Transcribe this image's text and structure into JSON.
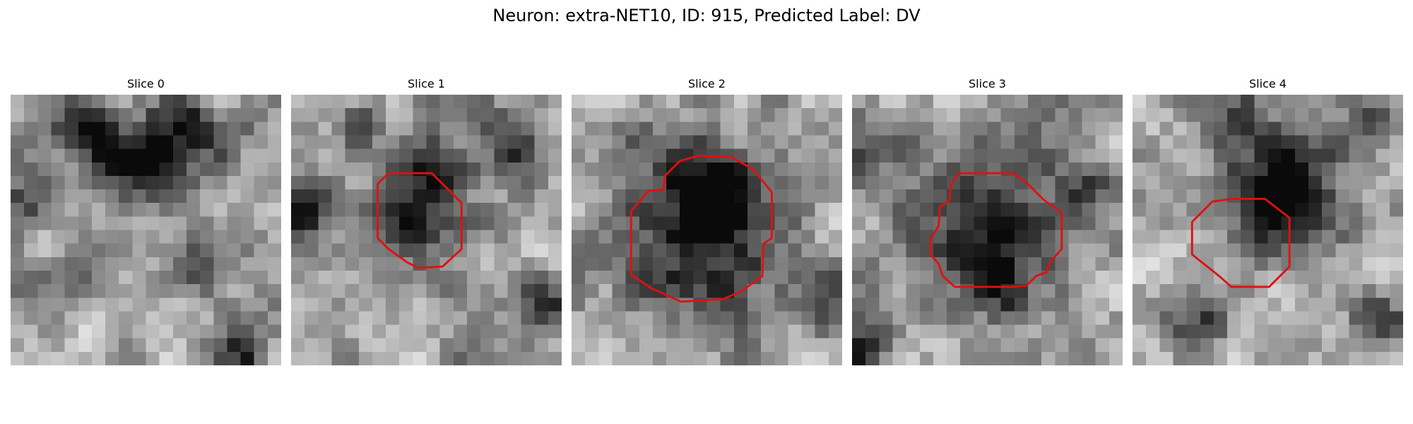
{
  "figure": {
    "title": "Neuron: extra-NET10, ID: 915, Predicted Label: DV"
  },
  "colors": {
    "contour": "#e01010"
  },
  "slices": [
    {
      "title": "Slice 0",
      "blobs": [
        {
          "cx": 5.5,
          "cy": 2.5,
          "r": 2.0,
          "d": 0.55
        },
        {
          "cx": 12.5,
          "cy": 1.5,
          "r": 1.6,
          "d": 0.5
        },
        {
          "cx": 10.5,
          "cy": 5.5,
          "r": 2.2,
          "d": 0.45
        },
        {
          "cx": 8.5,
          "cy": 4.5,
          "r": 1.3,
          "d": 0.35
        },
        {
          "cx": 1.0,
          "cy": 8.0,
          "r": 1.6,
          "d": 0.35
        },
        {
          "cx": 14.5,
          "cy": 12.0,
          "r": 1.8,
          "d": 0.3
        },
        {
          "cx": 3.0,
          "cy": 14.5,
          "r": 1.5,
          "d": 0.25
        },
        {
          "cx": 17.5,
          "cy": 19.0,
          "r": 1.5,
          "d": 0.5
        },
        {
          "cx": 15.5,
          "cy": 3.0,
          "r": 1.4,
          "d": 0.35
        }
      ],
      "contour": null
    },
    {
      "title": "Slice 1",
      "blobs": [
        {
          "cx": 9.0,
          "cy": 8.5,
          "r": 2.8,
          "d": 0.45
        },
        {
          "cx": 10.5,
          "cy": 4.8,
          "r": 1.5,
          "d": 0.5
        },
        {
          "cx": 16.5,
          "cy": 3.5,
          "r": 2.0,
          "d": 0.45
        },
        {
          "cx": 1.0,
          "cy": 9.0,
          "r": 1.5,
          "d": 0.5
        },
        {
          "cx": 18.5,
          "cy": 16.0,
          "r": 1.5,
          "d": 0.55
        },
        {
          "cx": 5.0,
          "cy": 2.0,
          "r": 1.3,
          "d": 0.25
        }
      ],
      "contour": [
        [
          7.2,
          5.8
        ],
        [
          10.4,
          5.8
        ],
        [
          12.6,
          8.0
        ],
        [
          12.6,
          11.4
        ],
        [
          11.2,
          12.7
        ],
        [
          9.4,
          12.8
        ],
        [
          8.6,
          12.4
        ],
        [
          7.2,
          11.4
        ],
        [
          6.4,
          10.6
        ],
        [
          6.4,
          6.6
        ]
      ]
    },
    {
      "title": "Slice 2",
      "blobs": [
        {
          "cx": 9.8,
          "cy": 10.4,
          "r": 4.3,
          "d": 0.62
        },
        {
          "cx": 10.8,
          "cy": 6.5,
          "r": 2.0,
          "d": 0.3
        },
        {
          "cx": 5.0,
          "cy": 3.3,
          "r": 1.2,
          "d": 0.35
        },
        {
          "cx": 19.5,
          "cy": 16.0,
          "r": 1.5,
          "d": 0.45
        }
      ],
      "contour": [
        [
          8.0,
          4.9
        ],
        [
          9.4,
          4.5
        ],
        [
          11.8,
          4.6
        ],
        [
          13.4,
          5.5
        ],
        [
          14.8,
          7.2
        ],
        [
          14.8,
          10.6
        ],
        [
          14.2,
          11.0
        ],
        [
          14.1,
          13.4
        ],
        [
          12.6,
          14.5
        ],
        [
          11.2,
          15.1
        ],
        [
          8.1,
          15.3
        ],
        [
          7.0,
          14.8
        ],
        [
          5.9,
          14.3
        ],
        [
          4.4,
          13.3
        ],
        [
          4.4,
          8.6
        ],
        [
          5.7,
          7.1
        ],
        [
          6.8,
          7.0
        ],
        [
          6.9,
          6.0
        ]
      ]
    },
    {
      "title": "Slice 3",
      "blobs": [
        {
          "cx": 10.3,
          "cy": 9.8,
          "r": 4.0,
          "d": 0.58
        },
        {
          "cx": 11.0,
          "cy": 14.5,
          "r": 1.5,
          "d": 0.25
        },
        {
          "cx": 1.0,
          "cy": 3.5,
          "r": 1.3,
          "d": 0.45
        },
        {
          "cx": 17.5,
          "cy": 7.5,
          "r": 1.3,
          "d": 0.3
        },
        {
          "cx": 0.5,
          "cy": 19.0,
          "r": 1.5,
          "d": 0.5
        }
      ],
      "contour": [
        [
          7.9,
          5.8
        ],
        [
          11.9,
          5.8
        ],
        [
          12.9,
          6.5
        ],
        [
          14.2,
          7.8
        ],
        [
          15.5,
          8.7
        ],
        [
          15.5,
          11.4
        ],
        [
          14.6,
          12.4
        ],
        [
          14.4,
          13.1
        ],
        [
          13.6,
          13.4
        ],
        [
          12.9,
          14.1
        ],
        [
          11.9,
          14.2
        ],
        [
          7.6,
          14.2
        ],
        [
          6.7,
          13.4
        ],
        [
          6.4,
          12.5
        ],
        [
          5.8,
          11.8
        ],
        [
          5.8,
          10.6
        ],
        [
          6.4,
          9.7
        ],
        [
          6.5,
          8.3
        ],
        [
          7.2,
          7.8
        ],
        [
          7.3,
          6.6
        ]
      ]
    },
    {
      "title": "Slice 4",
      "blobs": [
        {
          "cx": 11.3,
          "cy": 6.5,
          "r": 3.3,
          "d": 0.62
        },
        {
          "cx": 9.8,
          "cy": 9.3,
          "r": 1.5,
          "d": 0.35
        },
        {
          "cx": 5.0,
          "cy": 16.5,
          "r": 1.8,
          "d": 0.45
        },
        {
          "cx": 18.5,
          "cy": 17.0,
          "r": 1.5,
          "d": 0.45
        },
        {
          "cx": 8.0,
          "cy": 1.0,
          "r": 1.3,
          "d": 0.3
        },
        {
          "cx": 18.5,
          "cy": 2.0,
          "r": 1.2,
          "d": 0.3
        }
      ],
      "contour": [
        [
          7.3,
          7.7
        ],
        [
          9.8,
          7.7
        ],
        [
          11.6,
          9.1
        ],
        [
          11.6,
          12.7
        ],
        [
          10.1,
          14.2
        ],
        [
          7.3,
          14.2
        ],
        [
          6.4,
          13.4
        ],
        [
          4.4,
          11.8
        ],
        [
          4.4,
          9.4
        ],
        [
          5.9,
          7.9
        ]
      ]
    }
  ]
}
